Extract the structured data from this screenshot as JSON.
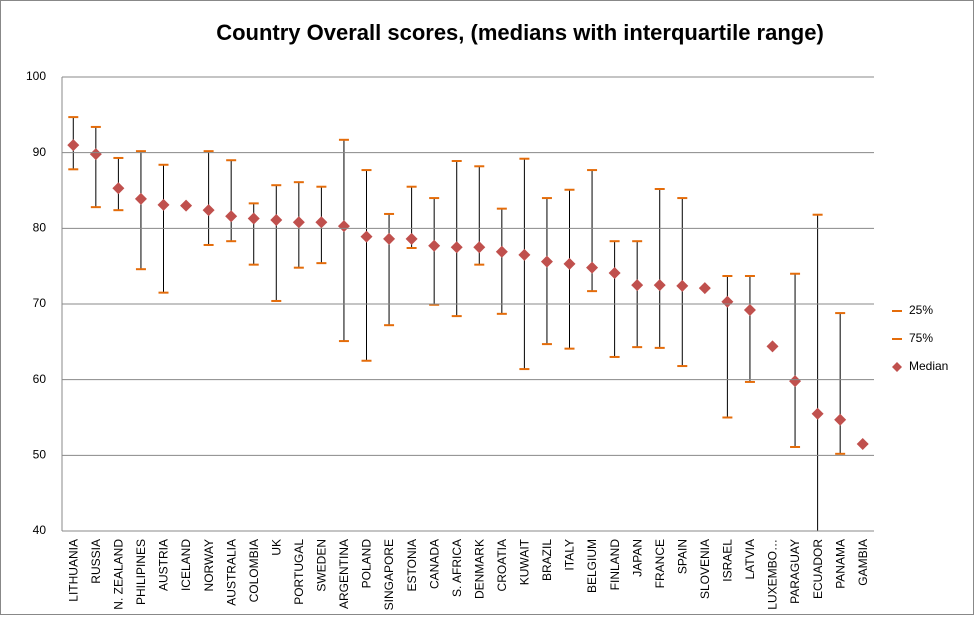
{
  "chart_data": {
    "type": "range-dot",
    "title": "Country Overall scores, (medians with interquartile range)",
    "categories": [
      "LITHUANIA",
      "RUSSIA",
      "N. ZEALAND",
      "PHILIPINES",
      "AUSTRIA",
      "ICELAND",
      "NORWAY",
      "AUSTRALIA",
      "COLOMBIA",
      "UK",
      "PORTUGAL",
      "SWEDEN",
      "ARGENTINA",
      "POLAND",
      "SINGAPORE",
      "ESTONIA",
      "CANADA",
      "S. AFRICA",
      "DENMARK",
      "CROATIA",
      "KUWAIT",
      "BRAZIL",
      "ITALY",
      "BELGIUM",
      "FINLAND",
      "JAPAN",
      "FRANCE",
      "SPAIN",
      "SLOVENIA",
      "ISRAEL",
      "LATVIA",
      "LUXEMBO…",
      "PARAGUAY",
      "ECUADOR",
      "PANAMA",
      "GAMBIA"
    ],
    "series": [
      {
        "name": "25%",
        "color": "#e46c0a",
        "values": [
          87.8,
          82.8,
          82.4,
          74.6,
          71.5,
          83.0,
          77.8,
          78.3,
          75.2,
          70.4,
          74.8,
          75.4,
          65.1,
          62.5,
          67.2,
          77.4,
          69.9,
          68.4,
          75.2,
          68.7,
          61.4,
          64.7,
          64.1,
          71.7,
          63.0,
          64.3,
          64.2,
          61.8,
          72.1,
          55.0,
          59.7,
          64.4,
          51.1,
          38.0,
          50.2,
          51.5
        ]
      },
      {
        "name": "75%",
        "color": "#e46c0a",
        "values": [
          94.7,
          93.4,
          89.3,
          90.2,
          88.4,
          83.0,
          90.2,
          89.0,
          83.3,
          85.7,
          86.1,
          85.5,
          91.7,
          87.7,
          81.9,
          85.5,
          84.0,
          88.9,
          88.2,
          82.6,
          89.2,
          84.0,
          85.1,
          87.7,
          78.3,
          78.3,
          85.2,
          84.0,
          72.1,
          73.7,
          73.7,
          64.4,
          74.0,
          81.8,
          68.8,
          51.5
        ]
      },
      {
        "name": "Median",
        "color": "#c0504d",
        "values": [
          91.0,
          89.8,
          85.3,
          83.9,
          83.1,
          83.0,
          82.4,
          81.6,
          81.3,
          81.1,
          80.8,
          80.8,
          80.3,
          78.9,
          78.6,
          78.6,
          77.7,
          77.5,
          77.5,
          76.9,
          76.5,
          75.6,
          75.3,
          74.8,
          74.1,
          72.5,
          72.5,
          72.4,
          72.1,
          70.3,
          69.2,
          64.4,
          59.8,
          55.5,
          54.7,
          51.5
        ]
      }
    ],
    "ylim": [
      40,
      100
    ],
    "yticks": [
      40,
      50,
      60,
      70,
      80,
      90,
      100
    ],
    "grid": true,
    "legend": "right"
  }
}
